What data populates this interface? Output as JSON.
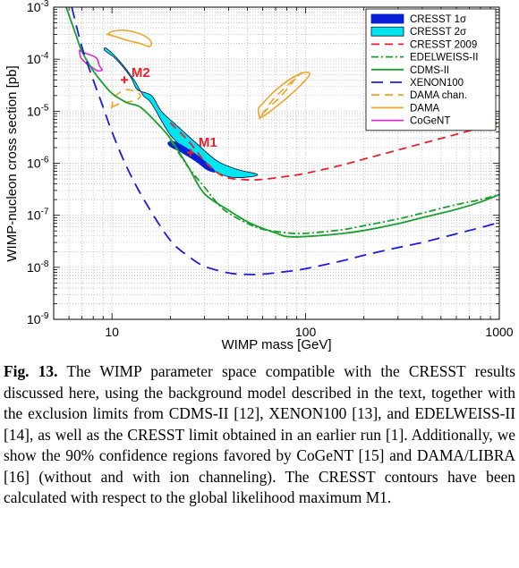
{
  "chart_data": {
    "type": "line",
    "title": "",
    "xlabel": "WIMP mass [GeV]",
    "ylabel": "WIMP-nucleon cross section [pb]",
    "xscale": "log",
    "yscale": "log",
    "xlim": [
      5,
      1000
    ],
    "ylim": [
      1e-09,
      0.001
    ],
    "xticks": [
      {
        "value": 10,
        "label": "10"
      },
      {
        "value": 100,
        "label": "100"
      },
      {
        "value": 1000,
        "label": "1000"
      }
    ],
    "yticks": [
      {
        "value": 1e-09,
        "base": "10",
        "exp": "-9"
      },
      {
        "value": 1e-08,
        "base": "10",
        "exp": "-8"
      },
      {
        "value": 1e-07,
        "base": "10",
        "exp": "-7"
      },
      {
        "value": 1e-06,
        "base": "10",
        "exp": "-6"
      },
      {
        "value": 1e-05,
        "base": "10",
        "exp": "-5"
      },
      {
        "value": 0.0001,
        "base": "10",
        "exp": "-4"
      },
      {
        "value": 0.001,
        "base": "10",
        "exp": "-3"
      }
    ],
    "grid": true,
    "legend_position": "top-right",
    "series": [
      {
        "name": "CRESST 1σ",
        "kind": "region",
        "color": "#0a1fd8",
        "fill": "#0a1fd8",
        "points": [
          [
            20,
            2.1e-06
          ],
          [
            23,
            1.6e-06
          ],
          [
            27,
            1.1e-06
          ],
          [
            31,
            7.5e-07
          ],
          [
            34,
            6.8e-07
          ],
          [
            32,
            9e-07
          ],
          [
            28,
            1.35e-06
          ],
          [
            24,
            2e-06
          ],
          [
            21,
            2.6e-06
          ],
          [
            19.5,
            2.5e-06
          ]
        ]
      },
      {
        "name": "CRESST 2σ",
        "kind": "region",
        "color": "#0a0a40",
        "fill": "#00e5ee",
        "points": [
          [
            9.4,
            0.00016
          ],
          [
            11,
            9e-05
          ],
          [
            13,
            4e-05
          ],
          [
            14.5,
            2e-05
          ],
          [
            16,
            1.4e-05
          ],
          [
            20,
            3.5e-06
          ],
          [
            25,
            1.6e-06
          ],
          [
            30,
            9e-07
          ],
          [
            40,
            5.5e-07
          ],
          [
            52,
            5.5e-07
          ],
          [
            56,
            6.2e-07
          ],
          [
            45,
            7.5e-07
          ],
          [
            35,
            1.1e-06
          ],
          [
            27,
            2.5e-06
          ],
          [
            22,
            5e-06
          ],
          [
            18,
            1e-05
          ],
          [
            16,
            2e-05
          ],
          [
            13.5,
            2.6e-05
          ],
          [
            12.5,
            4.5e-05
          ],
          [
            10.5,
            0.0001
          ],
          [
            9.2,
            0.000145
          ]
        ]
      },
      {
        "name": "CRESST 2009",
        "kind": "line",
        "color": "#e8202a",
        "dash": "9,6",
        "points": [
          [
            20,
            6e-06
          ],
          [
            25,
            2.6e-06
          ],
          [
            30,
            1.1e-06
          ],
          [
            35,
            6.6e-07
          ],
          [
            40,
            5.2e-07
          ],
          [
            50,
            4.8e-07
          ],
          [
            60,
            4.9e-07
          ],
          [
            80,
            5.6e-07
          ],
          [
            100,
            6.4e-07
          ],
          [
            150,
            9e-07
          ],
          [
            200,
            1.2e-06
          ],
          [
            300,
            1.8e-06
          ],
          [
            400,
            2.4e-06
          ],
          [
            600,
            3.6e-06
          ],
          [
            800,
            4.8e-06
          ],
          [
            1000,
            6.1e-06
          ]
        ]
      },
      {
        "name": "EDELWEISS-II",
        "kind": "line",
        "color": "#17a02c",
        "dash": "8,3,2,3",
        "points": [
          [
            20,
            2.8e-06
          ],
          [
            25,
            8e-07
          ],
          [
            30,
            3.5e-07
          ],
          [
            35,
            1.7e-07
          ],
          [
            40,
            1.1e-07
          ],
          [
            50,
            7e-08
          ],
          [
            60,
            5.4e-08
          ],
          [
            80,
            4.6e-08
          ],
          [
            100,
            4.5e-08
          ],
          [
            150,
            5.2e-08
          ],
          [
            200,
            6.3e-08
          ],
          [
            300,
            8.5e-08
          ],
          [
            400,
            1.1e-07
          ],
          [
            600,
            1.6e-07
          ],
          [
            800,
            2e-07
          ],
          [
            1000,
            2.5e-07
          ]
        ]
      },
      {
        "name": "CDMS-II",
        "kind": "line",
        "color": "#17a02c",
        "dash": "",
        "points": [
          [
            5.8,
            0.001
          ],
          [
            6.5,
            0.0003
          ],
          [
            7,
            0.00014
          ],
          [
            8,
            6e-05
          ],
          [
            9,
            3.4e-05
          ],
          [
            10,
            2.2e-05
          ],
          [
            12,
            1.45e-05
          ],
          [
            14,
            1.2e-05
          ],
          [
            17,
            6e-06
          ],
          [
            20,
            3e-06
          ],
          [
            25,
            8e-07
          ],
          [
            30,
            2.6e-07
          ],
          [
            40,
            1.25e-07
          ],
          [
            50,
            7.5e-08
          ],
          [
            60,
            5.6e-08
          ],
          [
            70,
            4.6e-08
          ],
          [
            80,
            3.9e-08
          ],
          [
            100,
            3.9e-08
          ],
          [
            150,
            4.4e-08
          ],
          [
            200,
            5.1e-08
          ],
          [
            300,
            6.9e-08
          ],
          [
            400,
            9e-08
          ],
          [
            600,
            1.3e-07
          ],
          [
            800,
            1.8e-07
          ],
          [
            1000,
            2.5e-07
          ]
        ]
      },
      {
        "name": "XENON100",
        "kind": "line",
        "color": "#1a1ae0",
        "dash": "13,8",
        "points": [
          [
            6.2,
            0.001
          ],
          [
            7,
            0.00017
          ],
          [
            8,
            4e-05
          ],
          [
            9,
            1.2e-05
          ],
          [
            10,
            4e-06
          ],
          [
            12,
            8e-07
          ],
          [
            15,
            1.7e-07
          ],
          [
            20,
            3.3e-08
          ],
          [
            25,
            1.6e-08
          ],
          [
            30,
            1.05e-08
          ],
          [
            40,
            7.8e-09
          ],
          [
            50,
            7.3e-09
          ],
          [
            60,
            7.4e-09
          ],
          [
            80,
            8.3e-09
          ],
          [
            100,
            9.4e-09
          ],
          [
            150,
            1.3e-08
          ],
          [
            200,
            1.7e-08
          ],
          [
            300,
            2.4e-08
          ],
          [
            400,
            3e-08
          ],
          [
            600,
            4.4e-08
          ],
          [
            800,
            5.8e-08
          ],
          [
            1000,
            7.3e-08
          ]
        ]
      },
      {
        "name": "DAMA chan.",
        "kind": "contour",
        "color": "#f0a427",
        "dash": "9,6",
        "contours": [
          [
            [
              10,
              1.2e-05
            ],
            [
              11,
              1.4e-05
            ],
            [
              13,
              1.6e-05
            ],
            [
              14,
              1.9e-05
            ],
            [
              13.5,
              2.3e-05
            ],
            [
              12,
              2.6e-05
            ],
            [
              11,
              2.3e-05
            ],
            [
              10.2,
              1.8e-05
            ],
            [
              10,
              1.2e-05
            ]
          ],
          [
            [
              60,
              9e-06
            ],
            [
              65,
              1.2e-05
            ],
            [
              75,
              2e-05
            ],
            [
              85,
              3.5e-05
            ],
            [
              90,
              4.6e-05
            ],
            [
              95,
              5.5e-05
            ],
            [
              88,
              4.2e-05
            ],
            [
              78,
              2.8e-05
            ],
            [
              68,
              1.7e-05
            ],
            [
              60,
              9e-06
            ]
          ]
        ]
      },
      {
        "name": "DAMA",
        "kind": "contour",
        "color": "#f0a427",
        "dash": "",
        "contours": [
          [
            [
              9.5,
              0.0003
            ],
            [
              10.5,
              0.00027
            ],
            [
              12,
              0.00023
            ],
            [
              14,
              0.0002
            ],
            [
              15.5,
              0.000175
            ],
            [
              16,
              0.000205
            ],
            [
              15.2,
              0.00026
            ],
            [
              13.5,
              0.00032
            ],
            [
              11.5,
              0.00036
            ],
            [
              10,
              0.00034
            ],
            [
              9.5,
              0.0003
            ]
          ],
          [
            [
              58,
              7.5e-06
            ],
            [
              62,
              8.5e-06
            ],
            [
              70,
              1.2e-05
            ],
            [
              80,
              1.8e-05
            ],
            [
              92,
              2.9e-05
            ],
            [
              100,
              4e-05
            ],
            [
              105,
              5.2e-05
            ],
            [
              100,
              5.6e-05
            ],
            [
              88,
              4.7e-05
            ],
            [
              78,
              3.5e-05
            ],
            [
              68,
              2.3e-05
            ],
            [
              61,
              1.5e-05
            ],
            [
              57,
              1.1e-05
            ],
            [
              58,
              7.5e-06
            ]
          ]
        ]
      },
      {
        "name": "CoGeNT",
        "kind": "contour",
        "color": "#d82ed8",
        "dash": "",
        "contours": [
          [
            [
              6.8,
              0.000145
            ],
            [
              7.3,
              0.00013
            ],
            [
              8,
              0.000115
            ],
            [
              8.4,
              0.0001
            ],
            [
              8.6,
              7.5e-05
            ],
            [
              8.9,
              6.2e-05
            ],
            [
              8.4,
              6e-05
            ],
            [
              7.8,
              7.2e-05
            ],
            [
              7.3,
              8.6e-05
            ],
            [
              6.9,
              0.000108
            ],
            [
              6.8,
              0.000145
            ]
          ]
        ]
      }
    ],
    "annotations": [
      {
        "label": "M1",
        "x": 25.5,
        "y": 1.6e-06,
        "text_x": 28,
        "text_y": 2.1e-06
      },
      {
        "label": "M2",
        "x": 11.6,
        "y": 4e-05,
        "text_x": 12.6,
        "text_y": 4.6e-05
      }
    ]
  },
  "caption": {
    "label": "Fig. 13.",
    "text": "The WIMP parameter space compatible with the CRESST results discussed here, using the background model described in the text, together with the exclusion limits from CDMS-II [12], XENON100 [13], and EDELWEISS-II [14], as well as the CRESST limit obtained in an earlier run [1]. Additionally, we show the 90% confidence regions favored by CoGeNT [15] and DAMA/LIBRA [16] (without and with ion channeling). The CRESST contours have been calculated with respect to the global likelihood maximum M1."
  }
}
